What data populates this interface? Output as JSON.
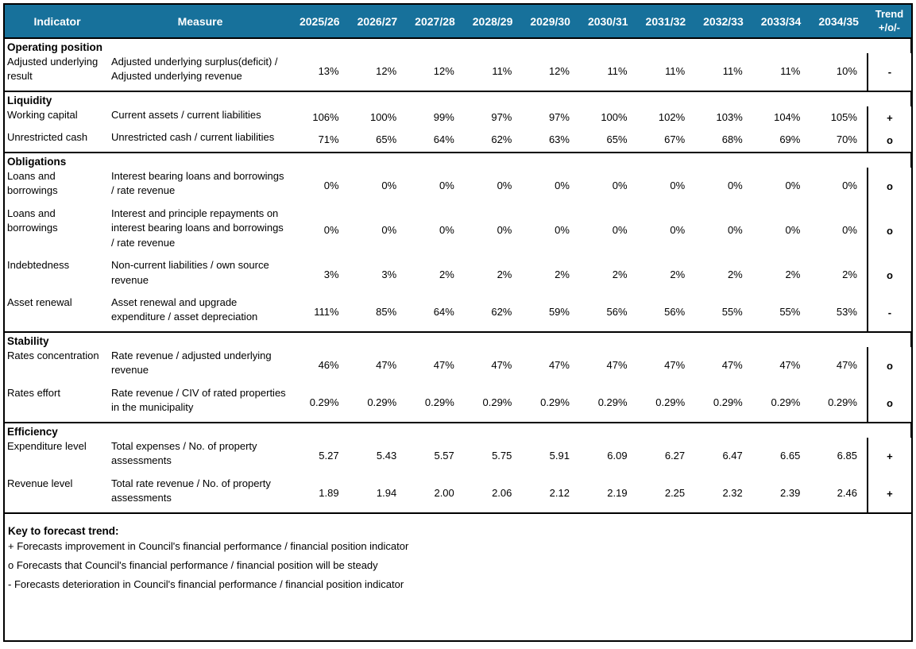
{
  "table": {
    "columns": {
      "indicator": "Indicator",
      "measure": "Measure",
      "years": [
        "2025/26",
        "2026/27",
        "2027/28",
        "2028/29",
        "2029/30",
        "2030/31",
        "2031/32",
        "2032/33",
        "2033/34",
        "2034/35"
      ],
      "trend_line1": "Trend",
      "trend_line2": "+/o/-"
    },
    "sections": [
      {
        "title": "Operating position",
        "rows": [
          {
            "indicator": "Adjusted underlying result",
            "measure": "Adjusted underlying surplus(deficit) / Adjusted underlying revenue",
            "values": [
              "13%",
              "12%",
              "12%",
              "11%",
              "12%",
              "11%",
              "11%",
              "11%",
              "11%",
              "10%"
            ],
            "trend": "-"
          }
        ]
      },
      {
        "title": "Liquidity",
        "rows": [
          {
            "indicator": "Working capital",
            "measure": "Current assets / current liabilities",
            "values": [
              "106%",
              "100%",
              "99%",
              "97%",
              "97%",
              "100%",
              "102%",
              "103%",
              "104%",
              "105%"
            ],
            "trend": "+"
          },
          {
            "indicator": "Unrestricted cash",
            "measure": "Unrestricted cash / current liabilities",
            "values": [
              "71%",
              "65%",
              "64%",
              "62%",
              "63%",
              "65%",
              "67%",
              "68%",
              "69%",
              "70%"
            ],
            "trend": "o"
          }
        ]
      },
      {
        "title": "Obligations",
        "rows": [
          {
            "indicator": "Loans and borrowings",
            "measure": "Interest bearing loans and borrowings / rate revenue",
            "values": [
              "0%",
              "0%",
              "0%",
              "0%",
              "0%",
              "0%",
              "0%",
              "0%",
              "0%",
              "0%"
            ],
            "trend": "o"
          },
          {
            "indicator": "Loans and borrowings",
            "measure": "Interest and principle repayments on interest bearing loans and borrowings / rate revenue",
            "values": [
              "0%",
              "0%",
              "0%",
              "0%",
              "0%",
              "0%",
              "0%",
              "0%",
              "0%",
              "0%"
            ],
            "trend": "o"
          },
          {
            "indicator": "Indebtedness",
            "measure": "Non-current liabilities / own source revenue",
            "values": [
              "3%",
              "3%",
              "2%",
              "2%",
              "2%",
              "2%",
              "2%",
              "2%",
              "2%",
              "2%"
            ],
            "trend": "o"
          },
          {
            "indicator": "Asset renewal",
            "measure": "Asset renewal and upgrade expenditure / asset depreciation",
            "values": [
              "111%",
              "85%",
              "64%",
              "62%",
              "59%",
              "56%",
              "56%",
              "55%",
              "55%",
              "53%"
            ],
            "trend": "-"
          }
        ]
      },
      {
        "title": "Stability",
        "rows": [
          {
            "indicator": "Rates concentration",
            "measure": "Rate revenue / adjusted underlying revenue",
            "values": [
              "46%",
              "47%",
              "47%",
              "47%",
              "47%",
              "47%",
              "47%",
              "47%",
              "47%",
              "47%"
            ],
            "trend": "o"
          },
          {
            "indicator": "Rates effort",
            "measure": "Rate revenue / CIV of rated properties in the municipality",
            "values": [
              "0.29%",
              "0.29%",
              "0.29%",
              "0.29%",
              "0.29%",
              "0.29%",
              "0.29%",
              "0.29%",
              "0.29%",
              "0.29%"
            ],
            "trend": "o"
          }
        ]
      },
      {
        "title": "Efficiency",
        "rows": [
          {
            "indicator": "Expenditure level",
            "measure": "Total expenses / No. of property assessments",
            "values": [
              "5.27",
              "5.43",
              "5.57",
              "5.75",
              "5.91",
              "6.09",
              "6.27",
              "6.47",
              "6.65",
              "6.85"
            ],
            "trend": "+"
          },
          {
            "indicator": "Revenue level",
            "measure": "Total rate revenue / No. of property assessments",
            "values": [
              "1.89",
              "1.94",
              "2.00",
              "2.06",
              "2.12",
              "2.19",
              "2.25",
              "2.32",
              "2.39",
              "2.46"
            ],
            "trend": "+"
          }
        ]
      }
    ],
    "key": {
      "title": "Key to forecast trend:",
      "lines": [
        "+ Forecasts improvement in Council's financial performance / financial position indicator",
        "o Forecasts that Council's financial performance / financial position will be steady",
        "- Forecasts deterioration in Council's financial performance / financial position indicator"
      ]
    },
    "colors": {
      "header_bg": "#17719b",
      "header_text": "#ffffff",
      "border": "#000000"
    }
  }
}
